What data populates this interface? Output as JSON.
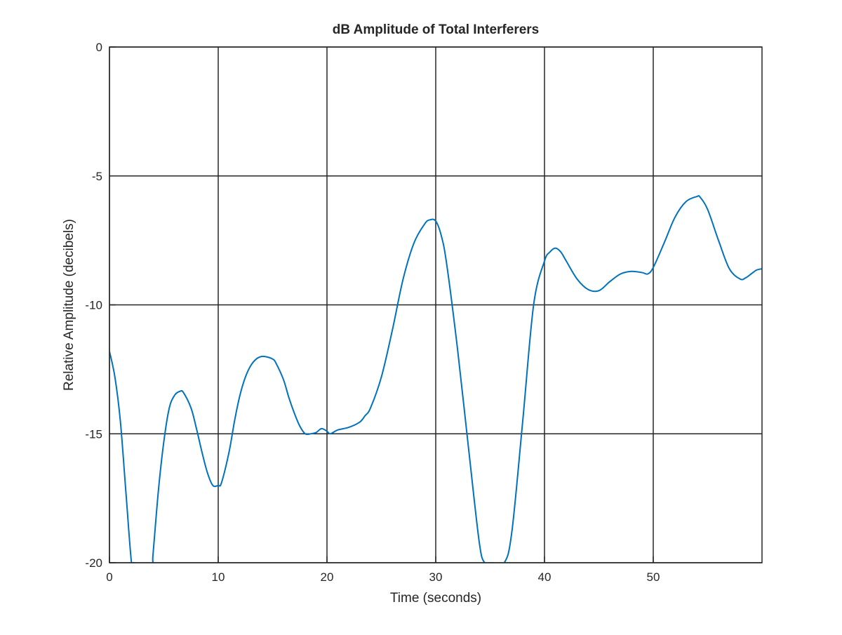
{
  "chart_data": {
    "type": "line",
    "title": "dB Amplitude of Total Interferers",
    "xlabel": "Time (seconds)",
    "ylabel": "Relative Amplitude (decibels)",
    "xlim": [
      0,
      60
    ],
    "ylim": [
      -20,
      0
    ],
    "xticks": [
      "0",
      "10",
      "20",
      "30",
      "40",
      "50"
    ],
    "xtick_values": [
      0,
      10,
      20,
      30,
      40,
      50
    ],
    "yticks": [
      "0",
      "-5",
      "-10",
      "-15",
      "-20"
    ],
    "ytick_values": [
      0,
      -5,
      -10,
      -15,
      -20
    ],
    "grid": true,
    "colors": {
      "series": "#0072bd",
      "grid": "#262626",
      "axes": "#262626"
    },
    "series": [
      {
        "x": [
          0,
          0.5,
          1,
          1.5,
          2,
          2.2,
          3.9,
          4,
          4.5,
          5,
          5.5,
          6,
          6.5,
          6.8,
          7.5,
          8,
          8.5,
          9,
          9.5,
          10,
          10.3,
          11,
          11.5,
          12,
          12.5,
          13,
          13.5,
          14,
          14.5,
          15,
          15.3,
          16,
          16.5,
          17,
          17.5,
          18,
          18.5,
          19,
          19.5,
          20,
          20.3,
          21,
          22,
          23,
          23.5,
          24,
          25,
          26,
          27,
          28,
          29,
          29.5,
          30,
          30.5,
          31,
          32,
          33,
          34,
          34.5,
          35.2,
          36.3,
          37,
          38,
          39,
          40,
          40.5,
          41,
          41.5,
          42,
          43,
          44,
          45,
          46,
          47,
          48,
          49,
          49.5,
          50,
          51,
          52,
          53,
          54,
          54.3,
          55,
          56,
          57,
          58,
          58.5,
          59,
          59.5,
          60
        ],
        "y": [
          -11.8,
          -12.8,
          -14.5,
          -17.2,
          -19.9,
          -20,
          -20,
          -19.7,
          -17.2,
          -15.3,
          -14.0,
          -13.5,
          -13.35,
          -13.4,
          -14.0,
          -14.8,
          -15.7,
          -16.5,
          -17.0,
          -17.0,
          -16.9,
          -15.7,
          -14.5,
          -13.5,
          -12.8,
          -12.35,
          -12.1,
          -12.0,
          -12.02,
          -12.1,
          -12.25,
          -12.9,
          -13.6,
          -14.2,
          -14.7,
          -15.0,
          -15.0,
          -14.95,
          -14.8,
          -14.9,
          -15.0,
          -14.85,
          -14.75,
          -14.55,
          -14.3,
          -14.0,
          -12.8,
          -11.0,
          -9.0,
          -7.6,
          -6.85,
          -6.7,
          -6.75,
          -7.3,
          -8.4,
          -11.7,
          -15.5,
          -19.2,
          -20,
          -20,
          -20,
          -18.8,
          -14.5,
          -10.0,
          -8.3,
          -7.95,
          -7.8,
          -7.95,
          -8.3,
          -9.0,
          -9.4,
          -9.45,
          -9.1,
          -8.8,
          -8.7,
          -8.75,
          -8.8,
          -8.55,
          -7.6,
          -6.6,
          -6.0,
          -5.8,
          -5.82,
          -6.3,
          -7.5,
          -8.6,
          -9.0,
          -8.95,
          -8.8,
          -8.65,
          -8.6
        ]
      }
    ]
  }
}
